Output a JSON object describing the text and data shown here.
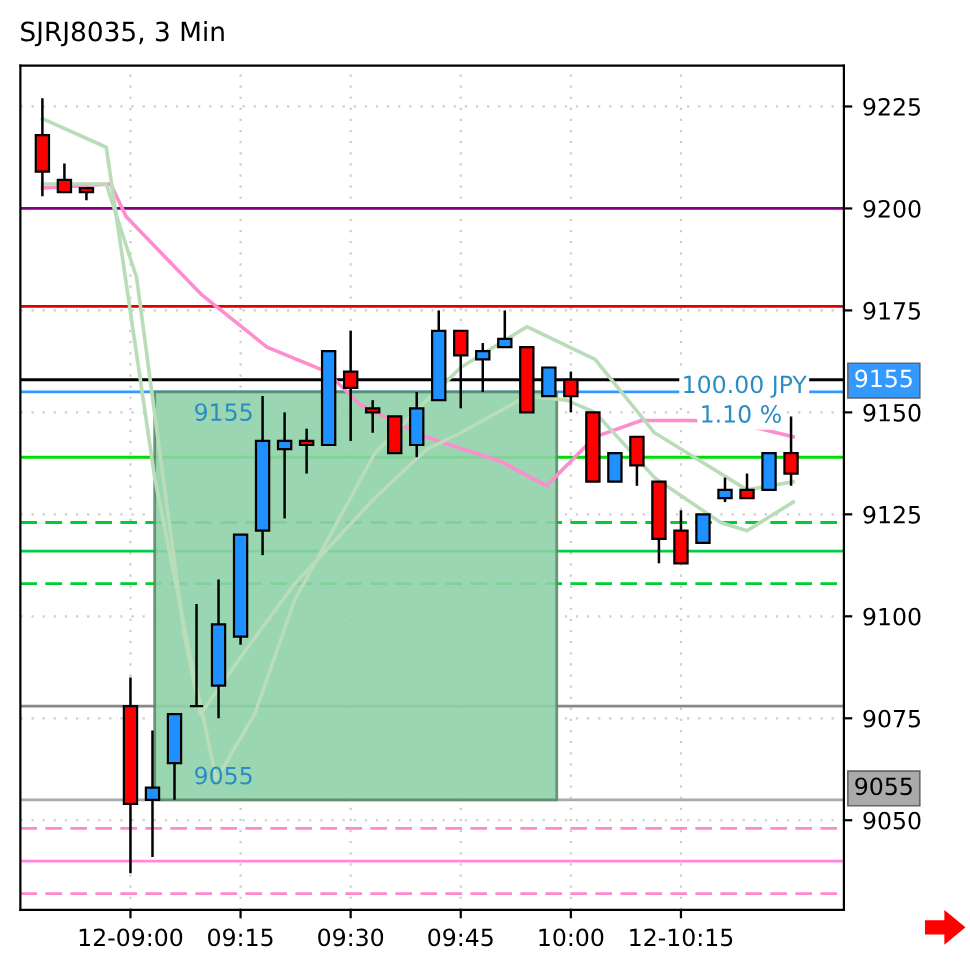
{
  "chart_data": {
    "type": "candlestick",
    "title": "SJRJ8035, 3 Min",
    "x": [
      8.8,
      8.85,
      8.9,
      9.0,
      9.05,
      9.1,
      9.15,
      9.2,
      9.25,
      9.3,
      9.35,
      9.4,
      9.45,
      9.5,
      9.55,
      9.6,
      9.65,
      9.7,
      9.75,
      9.8,
      9.85,
      9.9,
      9.95,
      10.0,
      10.05,
      10.1,
      10.15,
      10.2,
      10.25,
      10.3,
      10.35,
      10.4,
      10.45,
      10.5
    ],
    "ohlc": [
      [
        9218,
        9227,
        9203,
        9209
      ],
      [
        9207,
        9211,
        9204,
        9204
      ],
      [
        9205,
        9205,
        9202,
        9204
      ],
      [
        9078,
        9085,
        9037,
        9054
      ],
      [
        9055,
        9072,
        9041,
        9058
      ],
      [
        9064,
        9076,
        9055,
        9076
      ],
      [
        9078,
        9103,
        9078,
        9078
      ],
      [
        9083,
        9109,
        9075,
        9098
      ],
      [
        9095,
        9120,
        9093,
        9120
      ],
      [
        9121,
        9154,
        9115,
        9143
      ],
      [
        9141,
        9150,
        9124,
        9143
      ],
      [
        9143,
        9146,
        9135,
        9142
      ],
      [
        9142,
        9165,
        9142,
        9165
      ],
      [
        9160,
        9170,
        9143,
        9156
      ],
      [
        9151,
        9153,
        9145,
        9150
      ],
      [
        9149,
        9149,
        9140,
        9140
      ],
      [
        9142,
        9155,
        9139,
        9151
      ],
      [
        9153,
        9175,
        9153,
        9170
      ],
      [
        9170,
        9170,
        9151,
        9164
      ],
      [
        9163,
        9167,
        9155,
        9165
      ],
      [
        9166,
        9175,
        9166,
        9168
      ],
      [
        9166,
        9166,
        9150,
        9150
      ],
      [
        9154,
        9161,
        9154,
        9161
      ],
      [
        9158,
        9160,
        9150,
        9154
      ],
      [
        9150,
        9150,
        9133,
        9133
      ],
      [
        9133,
        9140,
        9133,
        9140
      ],
      [
        9144,
        9144,
        9132,
        9137
      ],
      [
        9133,
        9133,
        9113,
        9119
      ],
      [
        9121,
        9126,
        9113,
        9113
      ],
      [
        9118,
        9125,
        9118,
        9125
      ],
      [
        9129,
        9134,
        9128,
        9131
      ],
      [
        9131,
        9135,
        9129,
        9129
      ],
      [
        9131,
        9140,
        9131,
        9140
      ],
      [
        9140,
        9149,
        9132,
        9135
      ]
    ],
    "colors": [
      "#ff0000",
      "#ff0000",
      "#ff0000",
      "#ff0000",
      "#1e90ff",
      "#1e90ff",
      "#000000",
      "#1e90ff",
      "#1e90ff",
      "#1e90ff",
      "#1e90ff",
      "#ff0000",
      "#1e90ff",
      "#ff0000",
      "#ff0000",
      "#ff0000",
      "#1e90ff",
      "#1e90ff",
      "#ff0000",
      "#1e90ff",
      "#1e90ff",
      "#ff0000",
      "#1e90ff",
      "#ff0000",
      "#ff0000",
      "#1e90ff",
      "#ff0000",
      "#ff0000",
      "#ff0000",
      "#1e90ff",
      "#1e90ff",
      "#ff0000",
      "#1e90ff",
      "#ff0000"
    ],
    "series": [
      {
        "type": "line",
        "color": "#8fd1a8",
        "x": [
          9.055,
          9.968
        ],
        "values": [
          null,
          null
        ],
        "lower": [
          9055,
          9055
        ],
        "upper": [
          9155,
          9155
        ]
      },
      {
        "type": "line",
        "color": "#ff8ccc",
        "x": [
          8.8,
          8.955,
          8.99,
          9.16,
          9.31,
          9.445,
          9.52,
          9.67,
          9.84,
          9.945,
          10.055,
          10.16,
          10.28,
          10.43,
          10.505
        ],
        "values": [
          9205,
          9206,
          9198,
          9179,
          9166,
          9160,
          9152,
          9144,
          9138,
          9132,
          9144,
          9148,
          9148,
          9146,
          9144
        ]
      },
      {
        "type": "line",
        "color": "#b9dcb9",
        "x": [
          8.8,
          8.945,
          9.055,
          9.136,
          9.195,
          9.282,
          9.373,
          9.464,
          9.555,
          9.645,
          9.75,
          9.9,
          10.055,
          10.19,
          10.295,
          10.4,
          10.505
        ],
        "values": [
          9222,
          9215,
          9134,
          9090,
          9060,
          9076,
          9104,
          9122,
          9140,
          9150,
          9161,
          9171,
          9163,
          9145,
          9138,
          9131,
          9133
        ]
      },
      {
        "type": "line",
        "color": "#b9dcb9",
        "x": [
          8.8,
          8.945,
          9.014,
          9.068,
          9.123,
          9.159,
          9.25,
          9.373,
          9.555,
          9.673,
          9.75,
          9.9,
          9.99,
          10.055,
          10.19,
          10.34,
          10.4,
          10.505
        ],
        "values": [
          9206,
          9206,
          9183,
          9139,
          9095,
          9076,
          9090,
          9108,
          9129,
          9141,
          9145,
          9154,
          9153,
          9150,
          9134,
          9123,
          9121,
          9128
        ]
      }
    ],
    "ref_lines": [
      {
        "axis": "y",
        "value": 9200,
        "color": "#800080"
      },
      {
        "axis": "y",
        "value": 9176,
        "color": "#e00000"
      },
      {
        "axis": "y",
        "value": 9158,
        "color": "#000000"
      },
      {
        "axis": "y",
        "value": 9155,
        "color": "#3399ff",
        "label": "9155"
      },
      {
        "axis": "y",
        "value": 9139,
        "color": "#00dd00"
      },
      {
        "axis": "y",
        "value": 9123,
        "color": "#00cc33",
        "line_style": "dashed"
      },
      {
        "axis": "y",
        "value": 9116,
        "color": "#00cc44"
      },
      {
        "axis": "y",
        "value": 9108,
        "color": "#00cc33",
        "line_style": "dashed"
      },
      {
        "axis": "y",
        "value": 9078,
        "color": "#888888"
      },
      {
        "axis": "y",
        "value": 9055,
        "color": "#aaaaaa",
        "label": "9055"
      },
      {
        "axis": "y",
        "value": 9048,
        "color": "#ff88cc",
        "line_style": "dashed"
      },
      {
        "axis": "y",
        "value": 9040,
        "color": "#ff88dd"
      },
      {
        "axis": "y",
        "value": 9032,
        "color": "#ff88cc",
        "line_style": "dashed"
      }
    ],
    "annotations": [
      {
        "text": "9155",
        "x": 9.055,
        "y": 9155
      },
      {
        "text": "9055",
        "x": 9.055,
        "y": 9055
      },
      "100.00 JPY",
      "1.10 %"
    ],
    "xlim": [
      8.75,
      10.62
    ],
    "ylim": [
      9028,
      9235
    ],
    "xticks": [
      {
        "value": 9.0,
        "label": "12-09:00"
      },
      {
        "value": 9.25,
        "label": "09:15"
      },
      {
        "value": 9.5,
        "label": "09:30"
      },
      {
        "value": 9.75,
        "label": "09:45"
      },
      {
        "value": 10.0,
        "label": "10:00"
      },
      {
        "value": 10.25,
        "label": "12-10:15"
      }
    ],
    "yticks": [
      9050,
      9075,
      9100,
      9125,
      9150,
      9175,
      9200,
      9225
    ],
    "grid": true
  }
}
